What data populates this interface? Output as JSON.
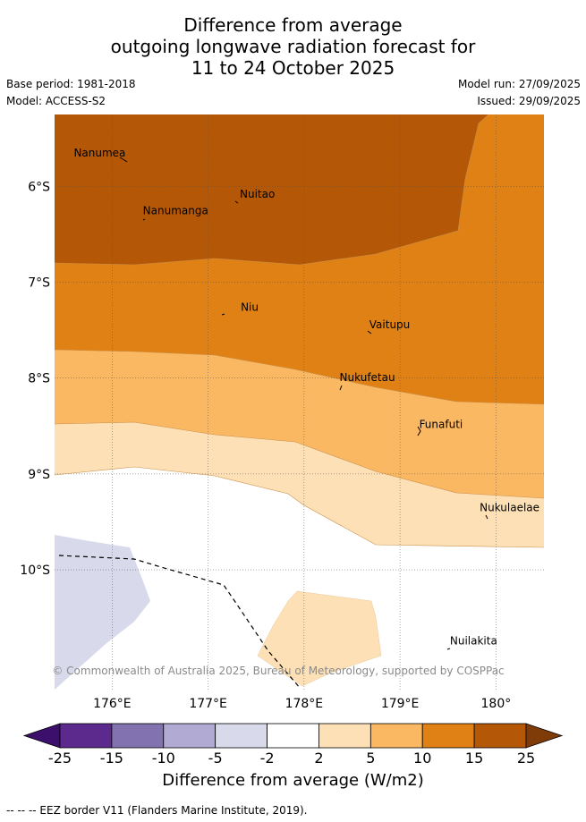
{
  "title": {
    "line1": "Difference from average",
    "line2": "outgoing longwave radiation forecast for",
    "line3": "11 to 24 October 2025"
  },
  "meta": {
    "base_period": "Base period: 1981-2018",
    "model": "Model: ACCESS-S2",
    "model_run": "Model run: 27/09/2025",
    "issued": "Issued: 29/09/2025"
  },
  "map": {
    "lon_labels": [
      "176°E",
      "177°E",
      "178°E",
      "179°E",
      "180°"
    ],
    "lat_labels": [
      "6°S",
      "7°S",
      "8°S",
      "9°S",
      "10°S"
    ],
    "lon_values": [
      176,
      177,
      178,
      179,
      180
    ],
    "lat_values": [
      -6,
      -7,
      -8,
      -9,
      -10
    ],
    "extent": {
      "lon_min": 175.4,
      "lon_max": 180.5,
      "lat_min": -11.25,
      "lat_max": -5.25
    },
    "places": [
      {
        "name": "Nanumea",
        "lon": 175.6,
        "lat": -5.69
      },
      {
        "name": "Nuitao",
        "lon": 177.33,
        "lat": -6.12
      },
      {
        "name": "Nanumanga",
        "lon": 176.32,
        "lat": -6.29
      },
      {
        "name": "Niu",
        "lon": 177.34,
        "lat": -7.3
      },
      {
        "name": "Vaitupu",
        "lon": 178.68,
        "lat": -7.48
      },
      {
        "name": "Nukufetau",
        "lon": 178.37,
        "lat": -8.03
      },
      {
        "name": "Funafuti",
        "lon": 179.2,
        "lat": -8.52
      },
      {
        "name": "Nukulaelae",
        "lon": 179.83,
        "lat": -9.39
      },
      {
        "name": "Nuilakita",
        "lon": 179.52,
        "lat": -10.78
      }
    ],
    "copyright": "© Commonwealth of Australia 2025, Bureau of Meteorology, supported by COSPPac"
  },
  "colorbar": {
    "labels": [
      "-25",
      "-15",
      "-10",
      "-5",
      "-2",
      "2",
      "5",
      "10",
      "15",
      "25"
    ],
    "colors": [
      "#5b2a8c",
      "#8273b0",
      "#b1aad3",
      "#d8d9ea",
      "#ffffff",
      "#fde0b5",
      "#fbb862",
      "#e08115",
      "#b45808"
    ],
    "extend_low_color": "#3b0f6b",
    "extend_high_color": "#7f3b08",
    "title": "Difference from average (W/m2)"
  },
  "legend_note": "--  --  -- EEZ border V11 (Flanders Marine Institute, 2019)."
}
